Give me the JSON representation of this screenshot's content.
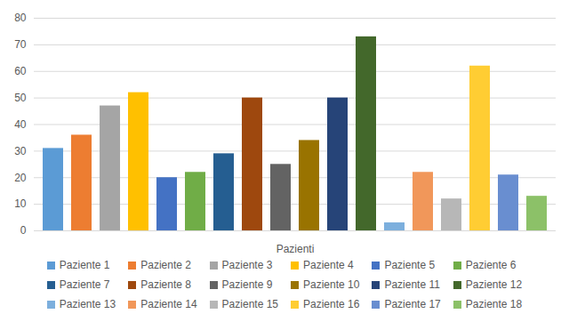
{
  "chart_data": {
    "type": "bar",
    "x_label": "Pazienti",
    "categories": [
      "Paziente 1",
      "Paziente 2",
      "Paziente 3",
      "Paziente 4",
      "Paziente 5",
      "Paziente 6",
      "Paziente 7",
      "Paziente 8",
      "Paziente 9",
      "Paziente 10",
      "Paziente 11",
      "Paziente 12",
      "Paziente 13",
      "Paziente 14",
      "Paziente 15",
      "Paziente 16",
      "Paziente 17",
      "Paziente 18"
    ],
    "values": [
      31,
      36,
      47,
      52,
      20,
      22,
      29,
      50,
      25,
      34,
      50,
      73,
      3,
      22,
      12,
      62,
      21,
      13
    ],
    "colors": [
      "#5b9bd5",
      "#ed7d31",
      "#a5a5a5",
      "#ffc000",
      "#4472c4",
      "#70ad47",
      "#255e91",
      "#9e480e",
      "#636363",
      "#997300",
      "#264478",
      "#43682b",
      "#7cafdd",
      "#f1975a",
      "#b7b7b7",
      "#ffcd33",
      "#698ed0",
      "#8cc168"
    ],
    "ylim": [
      0,
      80
    ],
    "yticks": [
      0,
      10,
      20,
      30,
      40,
      50,
      60,
      70,
      80
    ],
    "grid": true,
    "legend": "bottom",
    "tick_labels": "y"
  }
}
